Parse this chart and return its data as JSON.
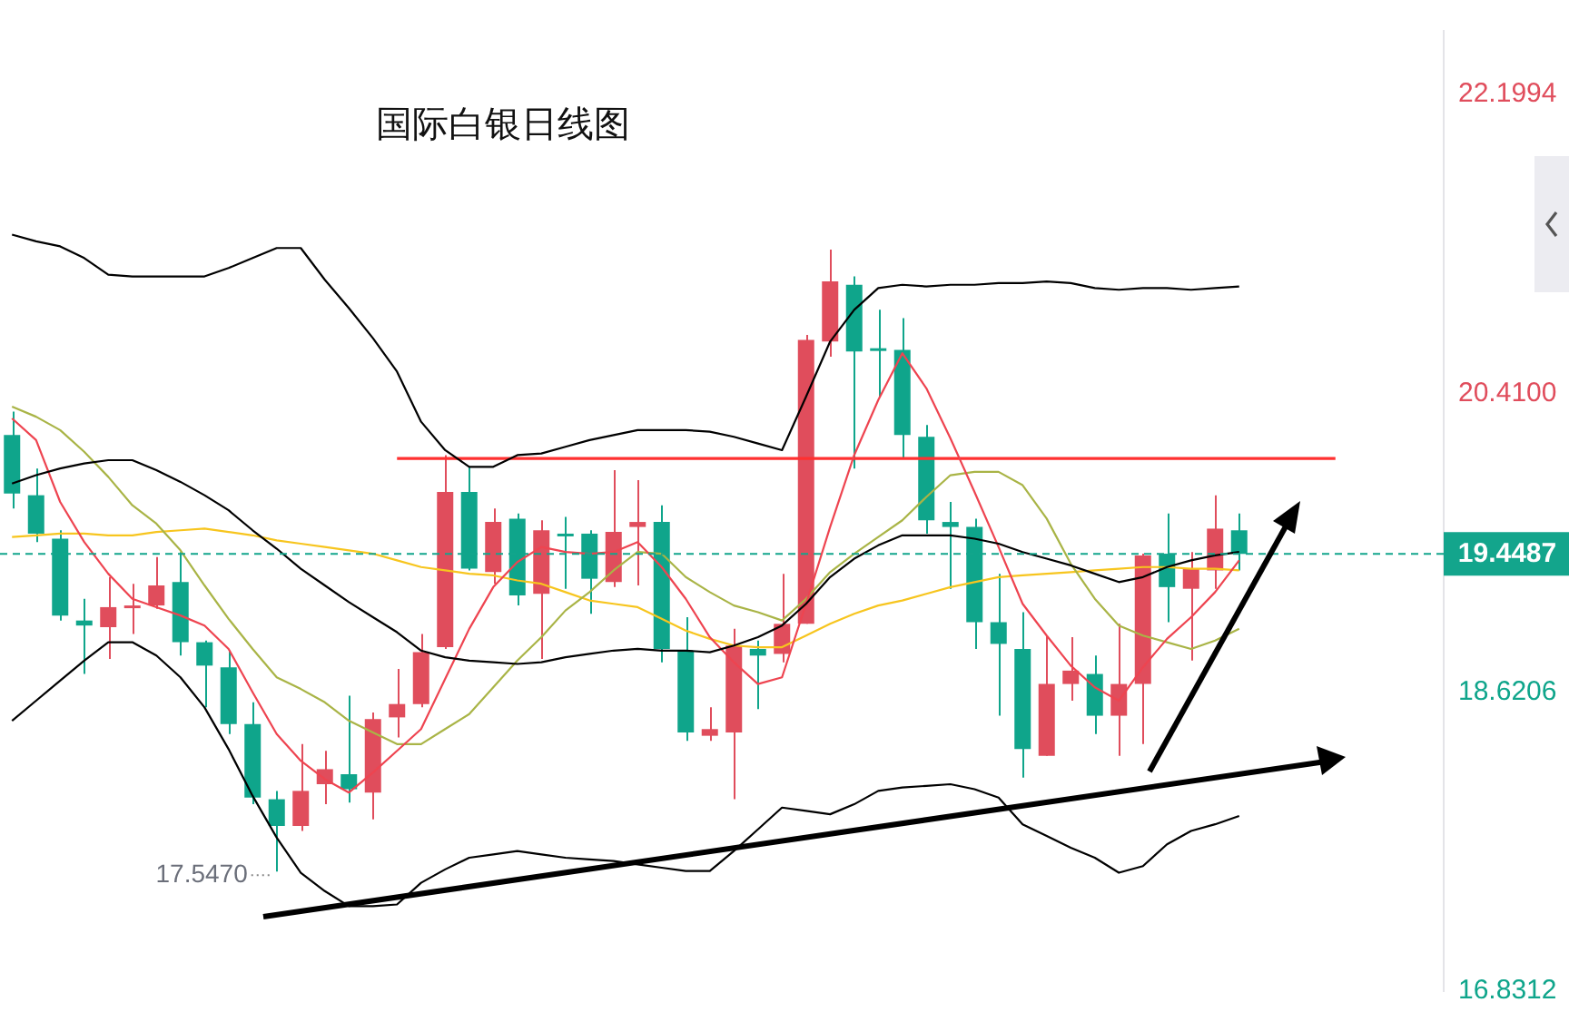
{
  "chart_data": {
    "type": "candlestick",
    "title": "国际白银日线图",
    "categories": [
      null,
      null,
      null,
      null,
      null,
      null,
      null,
      null,
      null,
      null,
      null,
      null,
      null,
      null,
      null,
      null,
      null,
      null,
      null,
      null,
      null,
      null,
      null,
      null,
      null,
      null,
      null,
      null,
      null,
      null,
      null,
      null,
      null,
      null,
      null,
      null,
      null,
      null,
      null,
      null,
      null,
      null,
      null,
      null,
      null,
      null,
      null,
      null,
      null,
      null,
      null,
      null,
      null,
      null,
      null,
      null,
      null,
      null,
      null,
      null
    ],
    "ohlc": [
      [
        20.16,
        20.3,
        19.72,
        19.81
      ],
      [
        19.8,
        19.96,
        19.52,
        19.57
      ],
      [
        19.54,
        19.59,
        19.05,
        19.08
      ],
      [
        19.05,
        19.18,
        18.73,
        19.02
      ],
      [
        19.01,
        19.31,
        18.82,
        19.13
      ],
      [
        19.13,
        19.27,
        18.97,
        19.14
      ],
      [
        19.14,
        19.43,
        19.12,
        19.26
      ],
      [
        19.28,
        19.46,
        18.84,
        18.92
      ],
      [
        18.92,
        18.93,
        18.53,
        18.78
      ],
      [
        18.77,
        18.87,
        18.37,
        18.43
      ],
      [
        18.43,
        18.56,
        17.95,
        17.99
      ],
      [
        17.98,
        18.03,
        17.547,
        17.82
      ],
      [
        17.82,
        18.31,
        17.79,
        18.03
      ],
      [
        18.07,
        18.27,
        17.95,
        18.16
      ],
      [
        18.13,
        18.6,
        17.96,
        18.04
      ],
      [
        18.02,
        18.5,
        17.86,
        18.46
      ],
      [
        18.47,
        18.76,
        18.35,
        18.55
      ],
      [
        18.55,
        18.97,
        18.53,
        18.86
      ],
      [
        18.89,
        20.04,
        18.88,
        19.82
      ],
      [
        19.82,
        19.97,
        19.35,
        19.36
      ],
      [
        19.34,
        19.72,
        19.27,
        19.64
      ],
      [
        19.66,
        19.69,
        19.14,
        19.2
      ],
      [
        19.21,
        19.65,
        18.82,
        19.59
      ],
      [
        19.57,
        19.67,
        19.24,
        19.56
      ],
      [
        19.57,
        19.59,
        19.09,
        19.3
      ],
      [
        19.28,
        19.95,
        19.25,
        19.58
      ],
      [
        19.61,
        19.89,
        19.26,
        19.64
      ],
      [
        19.64,
        19.74,
        18.8,
        18.88
      ],
      [
        18.87,
        19.07,
        18.33,
        18.38
      ],
      [
        18.36,
        18.53,
        18.33,
        18.4
      ],
      [
        18.38,
        19.0,
        17.98,
        18.9
      ],
      [
        18.88,
        18.93,
        18.52,
        18.84
      ],
      [
        18.85,
        19.33,
        18.8,
        19.03
      ],
      [
        19.03,
        20.76,
        19.03,
        20.73
      ],
      [
        20.72,
        21.27,
        20.63,
        21.08
      ],
      [
        21.06,
        21.11,
        19.96,
        20.66
      ],
      [
        20.68,
        20.91,
        20.39,
        20.67
      ],
      [
        20.67,
        20.86,
        20.02,
        20.16
      ],
      [
        20.15,
        20.22,
        19.57,
        19.65
      ],
      [
        19.64,
        19.76,
        19.24,
        19.61
      ],
      [
        19.61,
        19.66,
        18.88,
        19.04
      ],
      [
        19.04,
        19.33,
        18.48,
        18.91
      ],
      [
        18.88,
        19.1,
        18.11,
        18.28
      ],
      [
        18.24,
        18.96,
        18.24,
        18.67
      ],
      [
        18.67,
        18.95,
        18.57,
        18.75
      ],
      [
        18.73,
        18.84,
        18.37,
        18.48
      ],
      [
        18.48,
        19.03,
        18.24,
        18.67
      ],
      [
        18.67,
        19.45,
        18.31,
        19.44
      ],
      [
        19.45,
        19.69,
        19.04,
        19.25
      ],
      [
        19.24,
        19.46,
        18.81,
        19.36
      ],
      [
        19.35,
        19.8,
        19.24,
        19.6
      ],
      [
        19.59,
        19.69,
        19.35,
        19.4487
      ],
      null,
      null,
      null,
      null,
      null,
      null,
      null,
      null
    ],
    "colors": [
      "#0fa58b",
      "#0fa58b",
      "#0fa58b",
      "#0fa58b",
      "#e04d5c",
      "#e04d5c",
      "#e04d5c",
      "#0fa58b",
      "#0fa58b",
      "#0fa58b",
      "#0fa58b",
      "#0fa58b",
      "#e04d5c",
      "#e04d5c",
      "#0fa58b",
      "#e04d5c",
      "#e04d5c",
      "#e04d5c",
      "#e04d5c",
      "#0fa58b",
      "#e04d5c",
      "#0fa58b",
      "#e04d5c",
      "#0fa58b",
      "#0fa58b",
      "#e04d5c",
      "#e04d5c",
      "#0fa58b",
      "#0fa58b",
      "#e04d5c",
      "#e04d5c",
      "#0fa58b",
      "#e04d5c",
      "#e04d5c",
      "#e04d5c",
      "#0fa58b",
      "#0fa58b",
      "#0fa58b",
      "#0fa58b",
      "#0fa58b",
      "#0fa58b",
      "#0fa58b",
      "#0fa58b",
      "#e04d5c",
      "#e04d5c",
      "#0fa58b",
      "#e04d5c",
      "#e04d5c",
      "#0fa58b",
      "#e04d5c",
      "#e04d5c",
      "#0fa58b",
      null,
      null,
      null,
      null,
      null,
      null,
      null,
      null
    ],
    "series": [
      {
        "type": "line",
        "color": "#000000",
        "values": [
          21.36,
          21.32,
          21.29,
          21.22,
          21.12,
          21.11,
          21.11,
          21.11,
          21.11,
          21.16,
          21.22,
          21.28,
          21.28,
          21.09,
          20.92,
          20.74,
          20.54,
          20.24,
          20.07,
          19.97,
          19.97,
          20.04,
          20.05,
          20.09,
          20.13,
          20.16,
          20.19,
          20.19,
          20.19,
          20.18,
          20.15,
          20.11,
          20.07,
          20.39,
          20.72,
          20.91,
          21.04,
          21.06,
          21.05,
          21.06,
          21.06,
          21.07,
          21.07,
          21.08,
          21.07,
          21.04,
          21.03,
          21.04,
          21.04,
          21.03,
          21.04,
          21.05,
          null,
          null,
          null,
          null,
          null,
          null,
          null,
          null
        ]
      },
      {
        "type": "line",
        "color": "#000000",
        "values": [
          19.87,
          19.92,
          19.96,
          19.99,
          20.01,
          20.01,
          19.95,
          19.88,
          19.8,
          19.71,
          19.59,
          19.48,
          19.36,
          19.26,
          19.16,
          19.07,
          18.98,
          18.87,
          18.83,
          18.81,
          18.8,
          18.79,
          18.8,
          18.83,
          18.85,
          18.87,
          18.88,
          18.87,
          18.87,
          18.86,
          18.9,
          18.95,
          19.02,
          19.15,
          19.31,
          19.42,
          19.5,
          19.56,
          19.56,
          19.56,
          19.54,
          19.51,
          19.46,
          19.42,
          19.38,
          19.33,
          19.28,
          19.31,
          19.37,
          19.41,
          19.44,
          19.46,
          null,
          null,
          null,
          null,
          null,
          null,
          null,
          null
        ]
      },
      {
        "type": "line",
        "color": "#000000",
        "values": [
          18.45,
          18.57,
          18.69,
          18.81,
          18.92,
          18.92,
          18.84,
          18.71,
          18.53,
          18.28,
          18.0,
          17.75,
          17.54,
          17.43,
          17.34,
          17.34,
          17.35,
          17.48,
          17.56,
          17.63,
          17.65,
          17.67,
          17.65,
          17.63,
          17.62,
          17.61,
          17.59,
          17.57,
          17.55,
          17.55,
          17.67,
          17.8,
          17.93,
          17.91,
          17.89,
          17.95,
          18.03,
          18.05,
          18.06,
          18.07,
          18.04,
          17.99,
          17.83,
          17.76,
          17.69,
          17.63,
          17.54,
          17.58,
          17.71,
          17.79,
          17.83,
          17.88,
          null,
          null,
          null,
          null,
          null,
          null,
          null,
          null
        ]
      },
      {
        "type": "line",
        "color": "#ee4450",
        "values": [
          20.26,
          20.13,
          19.76,
          19.52,
          19.33,
          19.18,
          19.13,
          19.08,
          19.02,
          18.88,
          18.62,
          18.37,
          18.21,
          18.1,
          18.02,
          18.14,
          18.27,
          18.4,
          18.7,
          19.0,
          19.25,
          19.4,
          19.49,
          19.46,
          19.45,
          19.46,
          19.52,
          19.37,
          19.18,
          18.95,
          18.8,
          18.67,
          18.71,
          19.15,
          19.61,
          20.04,
          20.37,
          20.65,
          20.44,
          20.14,
          19.82,
          19.49,
          19.15,
          18.96,
          18.78,
          18.65,
          18.57,
          18.77,
          18.94,
          19.07,
          19.22,
          19.41,
          null,
          null,
          null,
          null,
          null,
          null,
          null,
          null
        ]
      },
      {
        "type": "line",
        "color": "#a9b446",
        "values": [
          20.33,
          20.27,
          20.19,
          20.06,
          19.91,
          19.74,
          19.63,
          19.47,
          19.26,
          19.06,
          18.88,
          18.71,
          18.64,
          18.56,
          18.45,
          18.38,
          18.31,
          18.31,
          18.4,
          18.49,
          18.65,
          18.81,
          18.95,
          19.11,
          19.22,
          19.35,
          19.46,
          19.45,
          19.31,
          19.22,
          19.14,
          19.1,
          19.05,
          19.18,
          19.34,
          19.45,
          19.55,
          19.65,
          19.79,
          19.92,
          19.94,
          19.94,
          19.86,
          19.66,
          19.39,
          19.18,
          19.02,
          18.96,
          18.92,
          18.88,
          18.93,
          19.0,
          null,
          null,
          null,
          null,
          null,
          null,
          null,
          null
        ]
      },
      {
        "type": "line",
        "color": "#f7c51e",
        "values": [
          19.55,
          19.56,
          19.57,
          19.57,
          19.56,
          19.56,
          19.58,
          19.59,
          19.6,
          19.58,
          19.56,
          19.53,
          19.51,
          19.49,
          19.47,
          19.45,
          19.41,
          19.37,
          19.35,
          19.33,
          19.32,
          19.29,
          19.27,
          19.22,
          19.17,
          19.15,
          19.13,
          19.06,
          18.99,
          18.94,
          18.9,
          18.89,
          18.89,
          18.96,
          19.03,
          19.09,
          19.14,
          19.17,
          19.21,
          19.25,
          19.28,
          19.31,
          19.32,
          19.33,
          19.34,
          19.35,
          19.36,
          19.37,
          19.37,
          19.36,
          19.36,
          19.35,
          null,
          null,
          null,
          null,
          null,
          null,
          null,
          null
        ]
      },
      {
        "type": "line",
        "color": "#ff3030",
        "values": [
          null,
          null,
          null,
          null,
          null,
          null,
          null,
          null,
          null,
          null,
          null,
          null,
          null,
          null,
          null,
          null,
          20.02,
          20.02,
          20.02,
          20.02,
          20.02,
          20.02,
          20.02,
          20.02,
          20.02,
          20.02,
          20.02,
          20.02,
          20.02,
          20.02,
          20.02,
          20.02,
          20.02,
          20.02,
          20.02,
          20.02,
          20.02,
          20.02,
          20.02,
          20.02,
          20.02,
          20.02,
          20.02,
          20.02,
          20.02,
          20.02,
          20.02,
          20.02,
          20.02,
          20.02,
          20.02,
          20.02,
          20.02,
          20.02,
          20.02,
          20.02,
          null,
          null,
          null,
          null
        ]
      }
    ],
    "ylim": [
      16.8312,
      22.58
    ],
    "yticks": [
      16.8312,
      18.6206,
      {
        "value": 20.41,
        "label": "20.4100"
      },
      22.1994
    ],
    "tick_labels": "y",
    "ref_lines": [
      {
        "axis": "y",
        "value": 19.4487,
        "label": "19.4487",
        "color": "#13a58c",
        "line_style": "dashed"
      }
    ],
    "annotations": [
      "17.5470"
    ]
  }
}
